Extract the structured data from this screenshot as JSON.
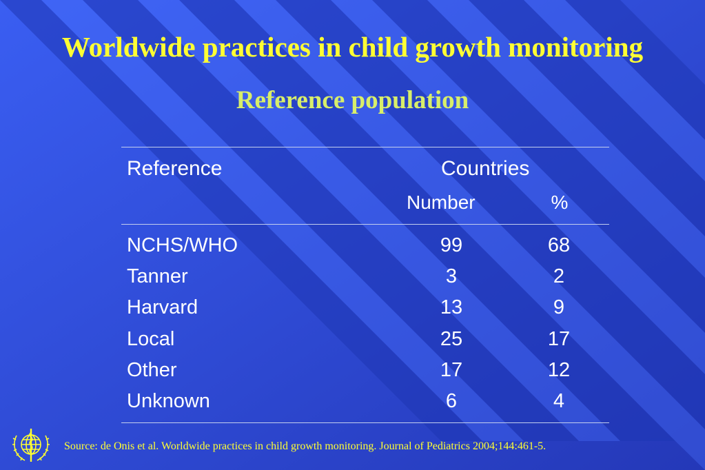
{
  "slide": {
    "title": "Worldwide practices in child growth monitoring",
    "subtitle": "Reference population"
  },
  "table": {
    "col_reference": "Reference",
    "col_countries": "Countries",
    "sub_number": "Number",
    "sub_percent": "%",
    "rows": [
      {
        "reference": "NCHS/WHO",
        "number": "99",
        "percent": "68"
      },
      {
        "reference": "Tanner",
        "number": "3",
        "percent": "2"
      },
      {
        "reference": "Harvard",
        "number": "13",
        "percent": "9"
      },
      {
        "reference": "Local",
        "number": "25",
        "percent": "17"
      },
      {
        "reference": "Other",
        "number": "17",
        "percent": "12"
      },
      {
        "reference": "Unknown",
        "number": "6",
        "percent": "4"
      }
    ]
  },
  "footer": {
    "source": "Source: de Onis et al. Worldwide practices in child growth monitoring. Journal of Pediatrics 2004;144:461-5.",
    "logo_icon": "who-emblem-icon"
  },
  "colors": {
    "background": "#2f4fd6",
    "title": "#ffff33",
    "subtitle": "#d8ee6a",
    "text": "#ffffff"
  }
}
